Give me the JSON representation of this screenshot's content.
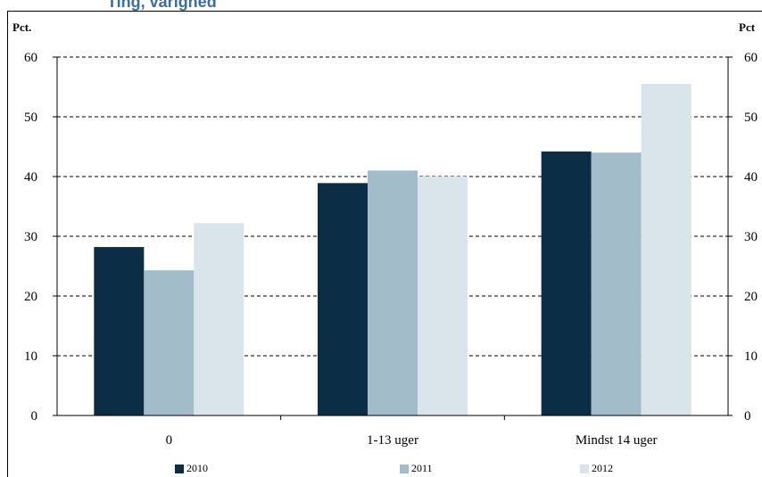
{
  "top_title": "Ting, varighed",
  "chart_data": {
    "type": "bar",
    "categories": [
      "0",
      "1-13 uger",
      "Mindst 14 uger"
    ],
    "series": [
      {
        "name": "2010",
        "values": [
          28.2,
          38.9,
          44.2
        ],
        "color": "#0b2d46"
      },
      {
        "name": "2011",
        "values": [
          24.3,
          41.0,
          44.0
        ],
        "color": "#a3bcca"
      },
      {
        "name": "2012",
        "values": [
          32.2,
          40.0,
          55.5
        ],
        "color": "#d9e4eb"
      }
    ],
    "ylabel_left": "Pct.",
    "ylabel_right": "Pct",
    "ylim": [
      0,
      60
    ],
    "yticks": [
      0,
      10,
      20,
      30,
      40,
      50,
      60
    ],
    "grid": true,
    "legend_position": "bottom"
  }
}
